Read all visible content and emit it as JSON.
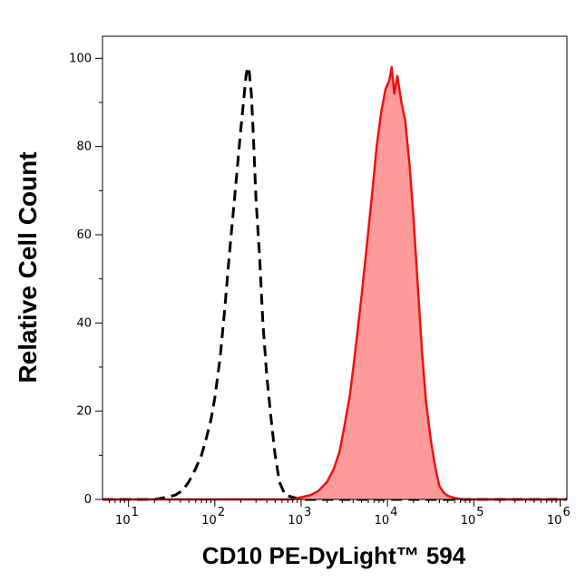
{
  "chart_data": {
    "type": "area",
    "xlabel": "CD10 PE-DyLight™ 594",
    "ylabel": "Relative Cell Count",
    "x_scale": "log",
    "xlim": [
      5,
      1200000
    ],
    "ylim": [
      0,
      105
    ],
    "x_ticks": [
      {
        "value": 10,
        "base": "10",
        "exp": "1"
      },
      {
        "value": 100,
        "base": "10",
        "exp": "2"
      },
      {
        "value": 1000,
        "base": "10",
        "exp": "3"
      },
      {
        "value": 10000,
        "base": "10",
        "exp": "4"
      },
      {
        "value": 100000,
        "base": "10",
        "exp": "5"
      },
      {
        "value": 1000000,
        "base": "10",
        "exp": "6"
      }
    ],
    "y_ticks": [
      0,
      20,
      40,
      60,
      80,
      100
    ],
    "grid": false,
    "series": [
      {
        "style": "dashed",
        "color": "#000000",
        "fill": "none",
        "x": [
          5,
          20,
          28,
          35,
          42,
          50,
          60,
          70,
          80,
          90,
          100,
          115,
          130,
          145,
          160,
          180,
          200,
          215,
          230,
          240,
          250,
          265,
          280,
          300,
          330,
          360,
          400,
          450,
          500,
          560,
          650,
          800,
          1000,
          1500,
          3000,
          8000,
          30000,
          1200000
        ],
        "y": [
          0,
          0,
          0.5,
          1,
          2,
          4,
          7,
          10,
          14,
          18,
          23,
          32,
          43,
          54,
          63,
          74,
          84,
          90,
          96,
          98,
          97,
          92,
          82,
          68,
          55,
          40,
          28,
          18,
          10,
          4,
          1,
          0.5,
          0,
          0,
          0,
          0,
          0,
          0
        ]
      },
      {
        "style": "solid",
        "color": "#ee1111",
        "fill": "#ff9a9a",
        "x": [
          5,
          800,
          1000,
          1300,
          1600,
          2000,
          2400,
          2800,
          3200,
          3700,
          4200,
          5000,
          5800,
          6700,
          7500,
          8500,
          9500,
          10500,
          11200,
          12000,
          13000,
          14500,
          16000,
          18000,
          20000,
          22500,
          25000,
          28000,
          32000,
          36000,
          40000,
          45000,
          50000,
          60000,
          80000,
          1200000
        ],
        "y": [
          0,
          0,
          0.5,
          1,
          2,
          4,
          7,
          11,
          17,
          24,
          33,
          46,
          58,
          70,
          80,
          88,
          93,
          95,
          98,
          92,
          96,
          90,
          86,
          76,
          64,
          48,
          34,
          22,
          13,
          7,
          3,
          1.5,
          0.8,
          0.3,
          0,
          0
        ]
      }
    ]
  }
}
